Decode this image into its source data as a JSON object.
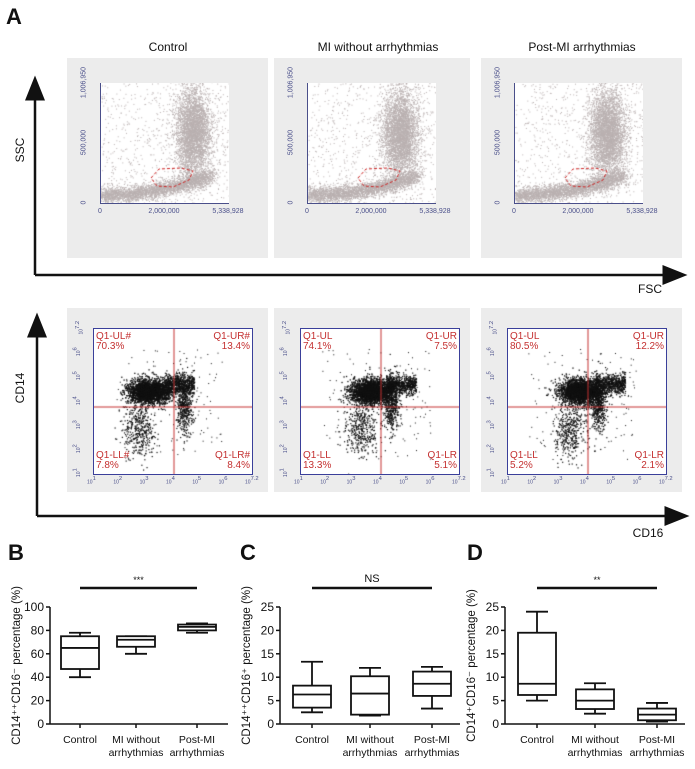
{
  "panel_labels": {
    "a": "A",
    "b": "B",
    "c": "C",
    "d": "D"
  },
  "groups": [
    "Control",
    "MI without arrhythmias",
    "Post-MI arrhythmias"
  ],
  "axes": {
    "ssc": "SSC",
    "fsc": "FSC",
    "cd14": "CD14",
    "cd16": "CD16"
  },
  "fsc_ssc": {
    "y_ticks": [
      "1,006,950",
      "500,000",
      "0"
    ],
    "x_ticks": [
      "0",
      "2,000,000",
      "5,338,928"
    ],
    "point_color": "#b9b0b0",
    "gate_color": "#cc2222"
  },
  "cd14_cd16": {
    "tick_base": "10",
    "x_ticks": [
      "1",
      "2",
      "3",
      "4",
      "5",
      "6",
      "7.2"
    ],
    "y_ticks": [
      "1",
      "2",
      "3",
      "4",
      "5",
      "6",
      "7.2"
    ],
    "line_color": "#c43030",
    "panels": [
      {
        "ul": "Q1-UL#",
        "ul_pct": "70.3%",
        "ur": "Q1-UR#",
        "ur_pct": "13.4%",
        "ll": "Q1-LL#",
        "ll_pct": "7.8%",
        "lr": "Q1-LR#",
        "lr_pct": "8.4%"
      },
      {
        "ul": "Q1-UL",
        "ul_pct": "74.1%",
        "ur": "Q1-UR",
        "ur_pct": "7.5%",
        "ll": "Q1-LL",
        "ll_pct": "13.3%",
        "lr": "Q1-LR",
        "lr_pct": "5.1%"
      },
      {
        "ul": "Q1-UL",
        "ul_pct": "80.5%",
        "ur": "Q1-UR",
        "ur_pct": "12.2%",
        "ll": "Q1-LL",
        "ll_pct": "5.2%",
        "lr": "Q1-LR",
        "lr_pct": "2.1%"
      }
    ]
  },
  "chart_data": [
    {
      "type": "box",
      "panel": "B",
      "ylabel": "CD14⁺⁺CD16⁻ percentage (%)",
      "ylim": [
        0,
        100
      ],
      "yticks": [
        "0",
        "20",
        "40",
        "60",
        "80",
        "100"
      ],
      "categories": [
        [
          "Control"
        ],
        [
          "MI without",
          "arrhythmias"
        ],
        [
          "Post-MI",
          "arrhythmias"
        ]
      ],
      "significance": "***",
      "boxes": [
        {
          "min": 40,
          "q1": 47,
          "median": 65,
          "q3": 75,
          "max": 78
        },
        {
          "min": 60,
          "q1": 66,
          "median": 72,
          "q3": 75,
          "max": 75
        },
        {
          "min": 78,
          "q1": 80,
          "median": 83,
          "q3": 85,
          "max": 86
        }
      ]
    },
    {
      "type": "box",
      "panel": "C",
      "ylabel": "CD14⁺⁺CD16⁺ percentage (%)",
      "ylim": [
        0,
        25
      ],
      "yticks": [
        "0",
        "5",
        "10",
        "15",
        "20",
        "25"
      ],
      "categories": [
        [
          "Control"
        ],
        [
          "MI without",
          "arrhythmias"
        ],
        [
          "Post-MI",
          "arrhythmias"
        ]
      ],
      "significance": "NS",
      "boxes": [
        {
          "min": 2.5,
          "q1": 3.5,
          "median": 6.3,
          "q3": 8.2,
          "max": 13.3
        },
        {
          "min": 1.8,
          "q1": 2,
          "median": 6.5,
          "q3": 10.2,
          "max": 12
        },
        {
          "min": 3.3,
          "q1": 6,
          "median": 8.6,
          "q3": 11.2,
          "max": 12.2
        }
      ]
    },
    {
      "type": "box",
      "panel": "D",
      "ylabel": "CD14⁺CD16⁻ percentage (%)",
      "ylim": [
        0,
        25
      ],
      "yticks": [
        "0",
        "5",
        "10",
        "15",
        "20",
        "25"
      ],
      "categories": [
        [
          "Control"
        ],
        [
          "MI without",
          "arrhythmias"
        ],
        [
          "Post-MI",
          "arrhythmias"
        ]
      ],
      "significance": "**",
      "boxes": [
        {
          "min": 5,
          "q1": 6.2,
          "median": 8.6,
          "q3": 19.5,
          "max": 24
        },
        {
          "min": 2.2,
          "q1": 3.2,
          "median": 5,
          "q3": 7.4,
          "max": 8.7
        },
        {
          "min": 0.5,
          "q1": 0.8,
          "median": 2,
          "q3": 3.3,
          "max": 4.5
        }
      ]
    }
  ]
}
